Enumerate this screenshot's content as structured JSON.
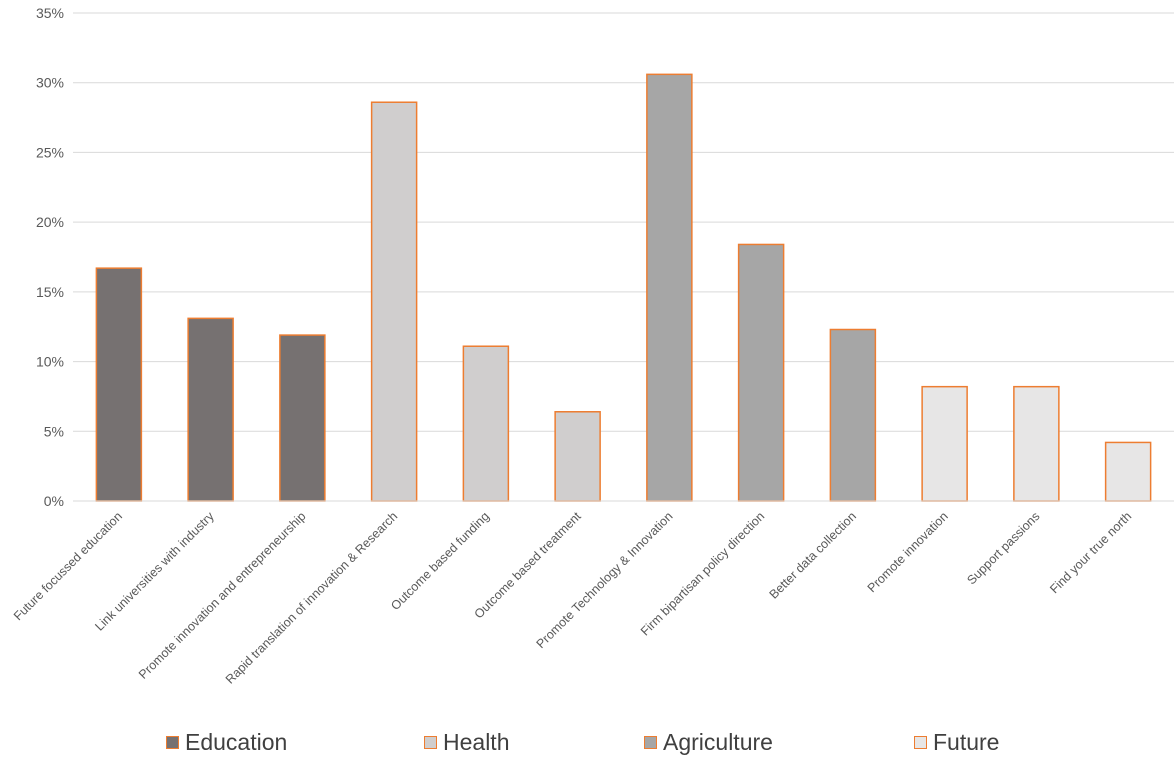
{
  "chart_data": {
    "type": "bar",
    "title": "",
    "xlabel": "",
    "ylabel": "",
    "ylim": [
      0,
      0.35
    ],
    "y_ticks": [
      "0%",
      "5%",
      "10%",
      "15%",
      "20%",
      "25%",
      "30%",
      "35%"
    ],
    "grid": true,
    "legend_position": "bottom",
    "bar_border_color": "#ed7d31",
    "categories": [
      "Future focussed education",
      "Link universities with industry",
      "Promote innovation and entrepreneurship",
      "Rapid translation of innovation & Research",
      "Outcome based funding",
      "Outcome based treatment",
      "Promote Technology & Innovation",
      "Firm bipartisan policy direction",
      "Better data collection",
      "Promote innovation",
      "Support passions",
      "Find your true north"
    ],
    "series": [
      {
        "name": "Education",
        "color": "#767171",
        "values": [
          0.167,
          0.131,
          0.119,
          null,
          null,
          null,
          null,
          null,
          null,
          null,
          null,
          null
        ]
      },
      {
        "name": "Health",
        "color": "#d0cece",
        "values": [
          null,
          null,
          null,
          0.286,
          0.111,
          0.064,
          null,
          null,
          null,
          null,
          null,
          null
        ]
      },
      {
        "name": "Agriculture",
        "color": "#a6a6a6",
        "values": [
          null,
          null,
          null,
          null,
          null,
          null,
          0.306,
          0.184,
          0.123,
          null,
          null,
          null
        ]
      },
      {
        "name": "Future",
        "color": "#e7e6e6",
        "values": [
          null,
          null,
          null,
          null,
          null,
          null,
          null,
          null,
          null,
          0.082,
          0.082,
          0.042
        ]
      }
    ]
  }
}
